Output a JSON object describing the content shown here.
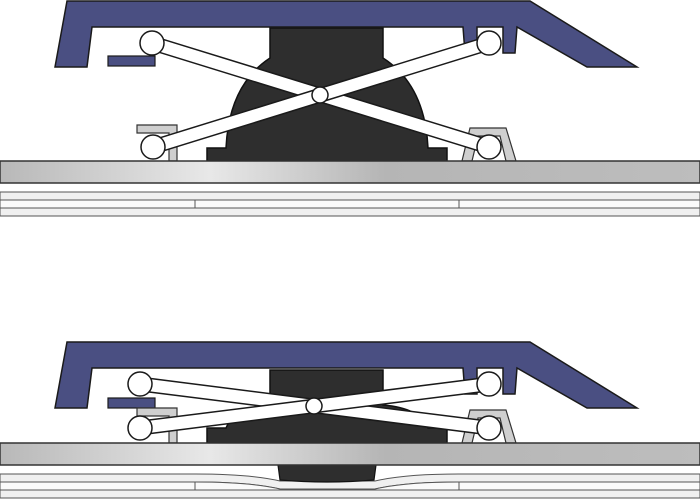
{
  "diagram": {
    "panels": [
      {
        "state": "released"
      },
      {
        "state": "pressed"
      }
    ],
    "colors": {
      "keycap": "#4a4f82",
      "dome": "#2e2e2e",
      "scissor": "#ffffff",
      "outline": "#1a1a1a",
      "plate": "#c8c8c8",
      "membrane": "#e6e6e6",
      "background": "#ffffff"
    }
  }
}
